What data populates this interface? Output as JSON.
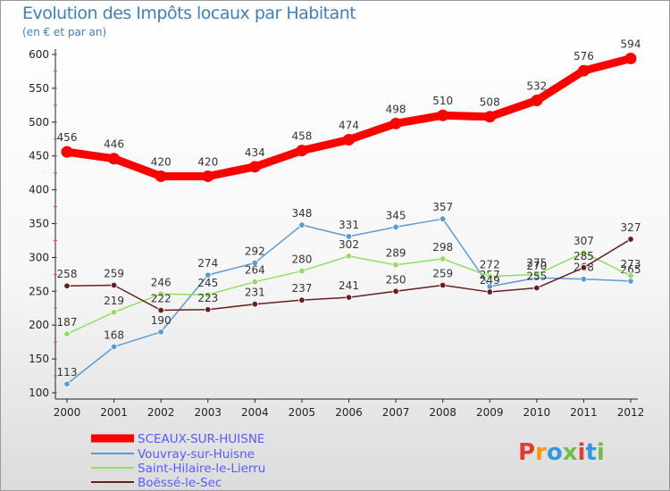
{
  "title": "Evolution des Impôts locaux par Habitant",
  "subtitle": "(en € et par an)",
  "logo": {
    "text": "Proxiti",
    "colors": [
      "#e63c2f",
      "#f39c12",
      "#2f9ae0",
      "#6cc04a",
      "#e63c2f",
      "#2f9ae0",
      "#6cc04a"
    ]
  },
  "chart_data": {
    "type": "line",
    "title": "Evolution des Impôts locaux par Habitant",
    "subtitle": "(en € et par an)",
    "x": [
      2000,
      2001,
      2002,
      2003,
      2004,
      2005,
      2006,
      2007,
      2008,
      2009,
      2010,
      2011,
      2012
    ],
    "ylim": [
      100,
      600
    ],
    "yticks": [
      100,
      150,
      200,
      250,
      300,
      350,
      400,
      450,
      500,
      550,
      600
    ],
    "grid": false,
    "legend_position": "bottom-left",
    "series": [
      {
        "name": "SCEAUX-SUR-HUISNE",
        "color": "#ff0000",
        "values": [
          456,
          446,
          420,
          420,
          434,
          458,
          474,
          498,
          510,
          508,
          532,
          576,
          594
        ]
      },
      {
        "name": "Vouvray-sur-Huisne",
        "color": "#5b9bd5",
        "values": [
          113,
          168,
          190,
          274,
          292,
          348,
          331,
          345,
          357,
          257,
          270,
          268,
          265
        ]
      },
      {
        "name": "Saint-Hilaire-le-Lierru",
        "color": "#90e060",
        "values": [
          187,
          219,
          246,
          245,
          264,
          280,
          302,
          289,
          298,
          272,
          275,
          307,
          273
        ]
      },
      {
        "name": "Boëssé-le-Sec",
        "color": "#6b1e1e",
        "values": [
          258,
          259,
          222,
          223,
          231,
          237,
          241,
          250,
          259,
          249,
          255,
          285,
          327
        ]
      }
    ]
  }
}
